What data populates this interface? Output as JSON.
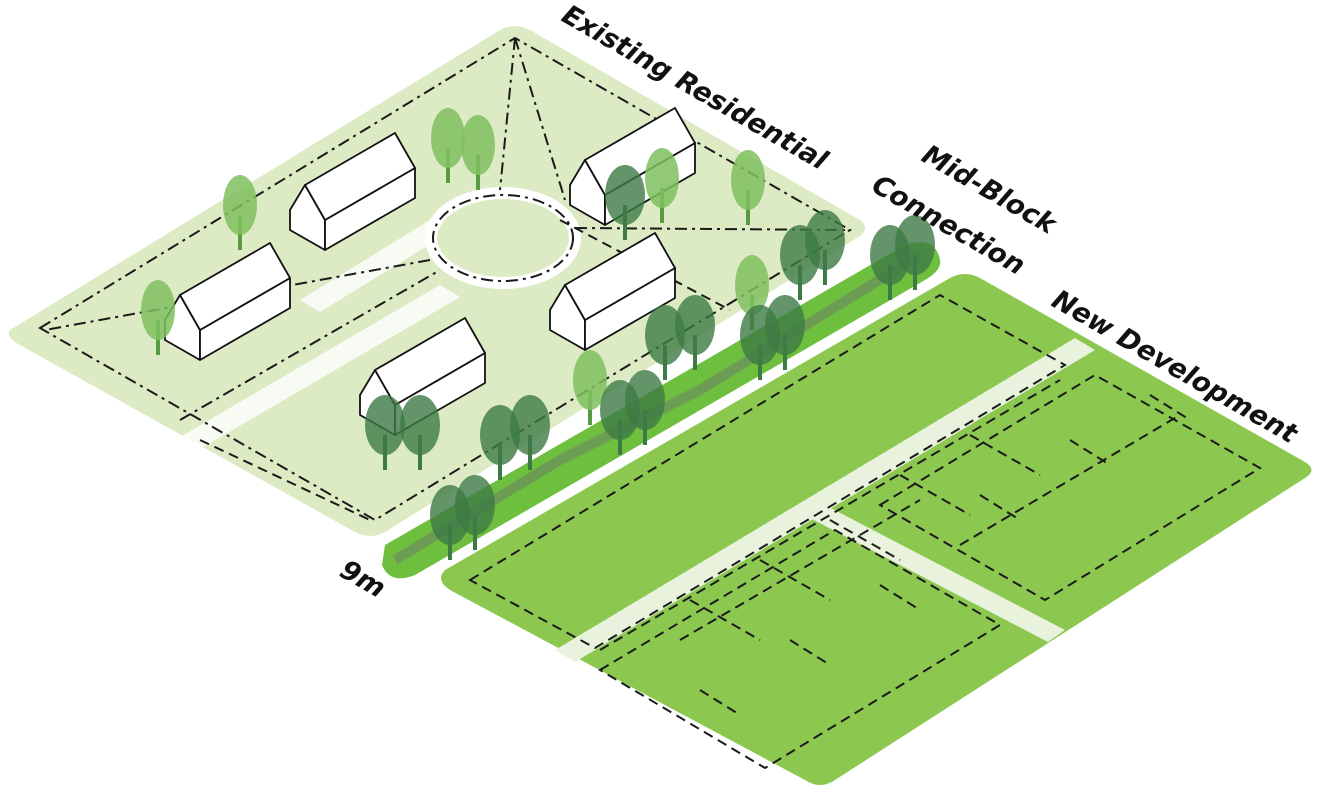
{
  "labels": {
    "existing": "Existing Residential",
    "midblock_1": "Mid-Block",
    "midblock_2": "Connection",
    "new": "New Development",
    "width": "9m"
  }
}
